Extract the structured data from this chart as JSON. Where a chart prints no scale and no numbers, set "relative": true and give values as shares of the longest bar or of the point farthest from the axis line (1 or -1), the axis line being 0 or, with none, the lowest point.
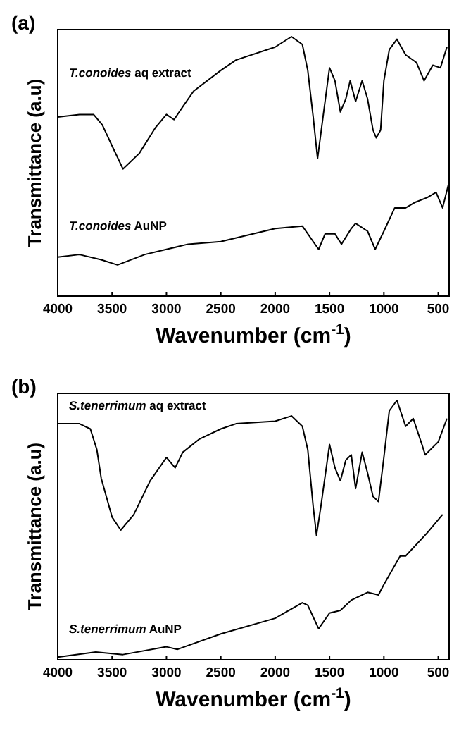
{
  "chart_data": [
    {
      "type": "line",
      "title": "(a)",
      "xlabel": "Wavenumber (cm$^{-1}$)",
      "ylabel": "Transmittance (a.u)",
      "relative": true,
      "xlim": [
        4000,
        400
      ],
      "xticks": [
        4000,
        3500,
        3000,
        2500,
        2000,
        1500,
        1000,
        500
      ],
      "series": [
        {
          "name": "T.conoides aq extract",
          "color": "#000000",
          "x": [
            4000,
            3800,
            3670,
            3590,
            3490,
            3400,
            3250,
            3100,
            3000,
            2930,
            2850,
            2750,
            2500,
            2360,
            2000,
            1850,
            1750,
            1700,
            1650,
            1610,
            1560,
            1500,
            1450,
            1400,
            1350,
            1310,
            1260,
            1200,
            1150,
            1100,
            1070,
            1030,
            1000,
            950,
            880,
            800,
            700,
            630,
            550,
            480,
            420
          ],
          "values": [
            0.69,
            0.7,
            0.7,
            0.66,
            0.57,
            0.49,
            0.55,
            0.65,
            0.7,
            0.68,
            0.73,
            0.79,
            0.87,
            0.91,
            0.96,
            1,
            0.97,
            0.87,
            0.69,
            0.53,
            0.69,
            0.88,
            0.83,
            0.71,
            0.76,
            0.83,
            0.75,
            0.83,
            0.76,
            0.64,
            0.61,
            0.64,
            0.83,
            0.95,
            0.99,
            0.93,
            0.9,
            0.83,
            0.89,
            0.88,
            0.96
          ]
        },
        {
          "name": "T.conoides AuNP",
          "color": "#000000",
          "x": [
            4000,
            3800,
            3600,
            3450,
            3200,
            3000,
            2800,
            2500,
            2000,
            1750,
            1650,
            1600,
            1540,
            1450,
            1390,
            1300,
            1260,
            1150,
            1080,
            1000,
            900,
            800,
            720,
            600,
            520,
            460,
            400
          ],
          "values": [
            0.15,
            0.16,
            0.14,
            0.12,
            0.16,
            0.18,
            0.2,
            0.21,
            0.26,
            0.27,
            0.21,
            0.18,
            0.24,
            0.24,
            0.2,
            0.26,
            0.28,
            0.25,
            0.18,
            0.25,
            0.34,
            0.34,
            0.36,
            0.38,
            0.4,
            0.34,
            0.44
          ]
        }
      ]
    },
    {
      "type": "line",
      "title": "(b)",
      "xlabel": "Wavenumber (cm$^{-1}$)",
      "ylabel": "Transmittance (a.u)",
      "relative": true,
      "xlim": [
        4000,
        400
      ],
      "xticks": [
        4000,
        3500,
        3000,
        2500,
        2000,
        1500,
        1000,
        500
      ],
      "series": [
        {
          "name": "S.tenerrimum aq extract",
          "color": "#000000",
          "x": [
            4000,
            3800,
            3700,
            3640,
            3600,
            3500,
            3420,
            3300,
            3150,
            3000,
            2920,
            2850,
            2700,
            2500,
            2360,
            2000,
            1850,
            1750,
            1700,
            1650,
            1620,
            1580,
            1500,
            1450,
            1400,
            1350,
            1300,
            1260,
            1200,
            1150,
            1100,
            1050,
            1000,
            950,
            880,
            800,
            730,
            650,
            620,
            500,
            420
          ],
          "values": [
            0.91,
            0.91,
            0.89,
            0.81,
            0.7,
            0.55,
            0.5,
            0.56,
            0.69,
            0.78,
            0.74,
            0.8,
            0.85,
            0.89,
            0.91,
            0.92,
            0.94,
            0.9,
            0.81,
            0.59,
            0.48,
            0.59,
            0.83,
            0.74,
            0.69,
            0.77,
            0.79,
            0.66,
            0.8,
            0.72,
            0.63,
            0.61,
            0.78,
            0.96,
            1,
            0.9,
            0.93,
            0.83,
            0.79,
            0.84,
            0.93
          ]
        },
        {
          "name": "S.tenerrimum AuNP",
          "color": "#000000",
          "x": [
            4000,
            3650,
            3400,
            3000,
            2900,
            2500,
            2000,
            1750,
            1700,
            1600,
            1500,
            1400,
            1300,
            1150,
            1050,
            1000,
            850,
            800,
            600,
            460
          ],
          "values": [
            0.01,
            0.03,
            0.02,
            0.05,
            0.04,
            0.1,
            0.16,
            0.22,
            0.21,
            0.12,
            0.18,
            0.19,
            0.23,
            0.26,
            0.25,
            0.29,
            0.4,
            0.4,
            0.49,
            0.56
          ]
        }
      ]
    }
  ]
}
